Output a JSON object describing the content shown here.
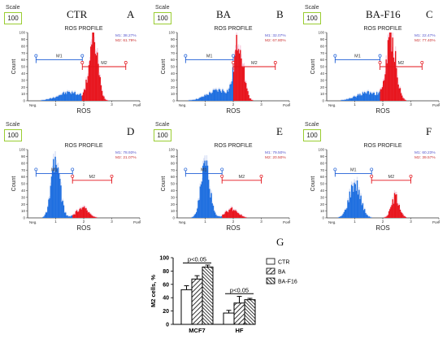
{
  "colors": {
    "m1": "#1f5fd6",
    "m2": "#e3131a",
    "m1_fill": "#1e6fe0",
    "m2_fill": "#e8141c",
    "m2_halo": "#f0a8c8",
    "m1_text": "#5555cc",
    "m2_text": "#cc3333",
    "scale_border": "#9acd32"
  },
  "panels": [
    {
      "id": "ctr",
      "title": "CTR",
      "letter": "A",
      "scale_label": "Scale",
      "scale_value": "100",
      "chart_title": "ROS PROFILE",
      "ylabel": "Count",
      "xlabel": "ROS",
      "neg_label": "Neg.",
      "pos_label": "Pos.",
      "m1_label": "M1",
      "m2_label": "M2",
      "m1_stat": "M1: 38.27%",
      "m2_stat": "M2: 61.79%"
    },
    {
      "id": "ba",
      "title": "BA",
      "letter": "B",
      "scale_label": "Scale",
      "scale_value": "100",
      "chart_title": "ROS PROFILE",
      "ylabel": "Count",
      "xlabel": "ROS",
      "neg_label": "Neg.",
      "pos_label": "Pos.",
      "m1_label": "M1",
      "m2_label": "M2",
      "m1_stat": "M1: 32.07%",
      "m2_stat": "M2: 67.80%"
    },
    {
      "id": "baf16",
      "title": "BA-F16",
      "letter": "C",
      "scale_label": "Scale",
      "scale_value": "100",
      "chart_title": "ROS PROFILE",
      "ylabel": "Count",
      "xlabel": "ROS",
      "neg_label": "Neg.",
      "pos_label": "Pos.",
      "m1_label": "M1",
      "m2_label": "M2",
      "m1_stat": "M1: 22.47%",
      "m2_stat": "M2: 77.40%"
    },
    {
      "id": "mcf7-ctr",
      "title": "",
      "letter": "D",
      "scale_label": "Scale",
      "scale_value": "100",
      "chart_title": "ROS PROFILE",
      "ylabel": "Count",
      "xlabel": "ROS",
      "neg_label": "Neg.",
      "pos_label": "Pos.",
      "m1_label": "M1",
      "m2_label": "M2",
      "m1_stat": "M1: 78.93%",
      "m2_stat": "M2: 21.07%"
    },
    {
      "id": "hf-ba",
      "title": "",
      "letter": "E",
      "scale_label": "Scale",
      "scale_value": "100",
      "chart_title": "ROS PROFILE",
      "ylabel": "Count",
      "xlabel": "ROS",
      "neg_label": "Neg.",
      "pos_label": "Pos.",
      "m1_label": "M1",
      "m2_label": "M2",
      "m1_stat": "M1: 79.50%",
      "m2_stat": "M2: 20.50%"
    },
    {
      "id": "hf-baf16",
      "title": "",
      "letter": "F",
      "scale_label": "Scale",
      "scale_value": "100",
      "chart_title": "ROS PROFILE",
      "ylabel": "Count",
      "xlabel": "ROS",
      "neg_label": "Neg.",
      "pos_label": "Pos.",
      "m1_label": "M1",
      "m2_label": "M2",
      "m1_stat": "M1: 60.23%",
      "m2_stat": "M2: 39.57%"
    }
  ],
  "chart_data": [
    {
      "type": "area",
      "panel": "A",
      "title": "ROS PROFILE",
      "xlabel": "ROS",
      "ylabel": "Count",
      "xlim": [
        0,
        4
      ],
      "ylim": [
        0,
        100
      ],
      "yticks": [
        0,
        10,
        20,
        30,
        40,
        50,
        60,
        70,
        80,
        90,
        100
      ],
      "xticks": [
        1,
        2,
        3,
        4
      ],
      "markers": {
        "m1": [
          0.3,
          1.95
        ],
        "m2": [
          1.95,
          3.5
        ]
      },
      "peaks": [
        {
          "center": 1.5,
          "height": 12,
          "width": 0.6
        },
        {
          "center": 2.35,
          "height": 88,
          "width": 0.22
        }
      ],
      "split": 1.95
    },
    {
      "type": "area",
      "panel": "B",
      "title": "ROS PROFILE",
      "xlabel": "ROS",
      "ylabel": "Count",
      "xlim": [
        0,
        4
      ],
      "ylim": [
        0,
        100
      ],
      "yticks": [
        0,
        10,
        20,
        30,
        40,
        50,
        60,
        70,
        80,
        90,
        100
      ],
      "xticks": [
        1,
        2,
        3,
        4
      ],
      "markers": {
        "m1": [
          0.3,
          2.0
        ],
        "m2": [
          2.0,
          3.5
        ]
      },
      "peaks": [
        {
          "center": 1.5,
          "height": 15,
          "width": 0.6
        },
        {
          "center": 2.2,
          "height": 85,
          "width": 0.22
        }
      ],
      "split": 2.0
    },
    {
      "type": "area",
      "panel": "C",
      "title": "ROS PROFILE",
      "xlabel": "ROS",
      "ylabel": "Count",
      "xlim": [
        0,
        4
      ],
      "ylim": [
        0,
        100
      ],
      "yticks": [
        0,
        10,
        20,
        30,
        40,
        50,
        60,
        70,
        80,
        90,
        100
      ],
      "xticks": [
        1,
        2,
        3,
        4
      ],
      "markers": {
        "m1": [
          0.3,
          1.9
        ],
        "m2": [
          1.9,
          3.4
        ]
      },
      "peaks": [
        {
          "center": 1.5,
          "height": 12,
          "width": 0.6
        },
        {
          "center": 2.3,
          "height": 88,
          "width": 0.24
        }
      ],
      "split": 1.9
    },
    {
      "type": "area",
      "panel": "D",
      "title": "ROS PROFILE",
      "xlabel": "ROS",
      "ylabel": "Count",
      "xlim": [
        0,
        4
      ],
      "ylim": [
        0,
        100
      ],
      "yticks": [
        0,
        10,
        20,
        30,
        40,
        50,
        60,
        70,
        80,
        90,
        100
      ],
      "xticks": [
        1,
        2,
        3,
        4
      ],
      "markers": {
        "m1": [
          0.3,
          1.6
        ],
        "m2": [
          1.6,
          3.0
        ]
      },
      "peaks": [
        {
          "center": 1.0,
          "height": 80,
          "width": 0.22
        },
        {
          "center": 1.95,
          "height": 14,
          "width": 0.3
        }
      ],
      "split": 1.6
    },
    {
      "type": "area",
      "panel": "E",
      "title": "ROS PROFILE",
      "xlabel": "ROS",
      "ylabel": "Count",
      "xlim": [
        0,
        4
      ],
      "ylim": [
        0,
        100
      ],
      "yticks": [
        0,
        10,
        20,
        30,
        40,
        50,
        60,
        70,
        80,
        90,
        100
      ],
      "xticks": [
        1,
        2,
        3,
        4
      ],
      "markers": {
        "m1": [
          0.3,
          1.6
        ],
        "m2": [
          1.6,
          3.0
        ]
      },
      "peaks": [
        {
          "center": 1.0,
          "height": 78,
          "width": 0.22
        },
        {
          "center": 1.95,
          "height": 13,
          "width": 0.3
        }
      ],
      "split": 1.6
    },
    {
      "type": "area",
      "panel": "F",
      "title": "ROS PROFILE",
      "xlabel": "ROS",
      "ylabel": "Count",
      "xlim": [
        0,
        4
      ],
      "ylim": [
        0,
        100
      ],
      "yticks": [
        0,
        10,
        20,
        30,
        40,
        50,
        60,
        70,
        80,
        90,
        100
      ],
      "xticks": [
        1,
        2,
        3,
        4
      ],
      "markers": {
        "m1": [
          0.3,
          1.6
        ],
        "m2": [
          1.6,
          3.0
        ]
      },
      "peaks": [
        {
          "center": 1.0,
          "height": 50,
          "width": 0.28
        },
        {
          "center": 2.45,
          "height": 30,
          "width": 0.2
        }
      ],
      "split": 1.6
    },
    {
      "type": "bar",
      "panel": "G",
      "letter": "G",
      "categories": [
        "MCF7",
        "HF"
      ],
      "ylabel": "M2 cells, %",
      "ylim": [
        0,
        100
      ],
      "yticks": [
        0,
        20,
        40,
        60,
        80,
        100
      ],
      "series": [
        {
          "name": "CTR",
          "values": [
            52,
            17
          ],
          "errors": [
            6,
            4
          ],
          "pattern": "white"
        },
        {
          "name": "BA",
          "values": [
            68,
            32
          ],
          "errors": [
            5,
            10
          ],
          "pattern": "diag"
        },
        {
          "name": "BA-F16",
          "values": [
            86,
            37
          ],
          "errors": [
            3,
            2
          ],
          "pattern": "diag-dense"
        }
      ],
      "annotations": [
        "p<0.05",
        "p<0.05"
      ]
    }
  ]
}
